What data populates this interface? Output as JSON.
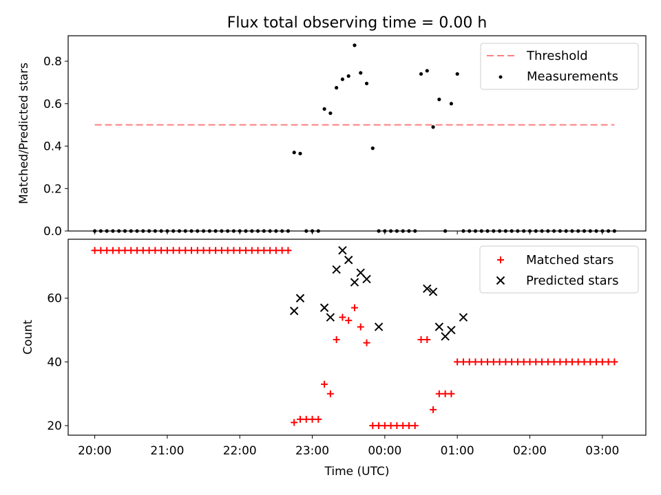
{
  "chart_data": [
    {
      "type": "scatter",
      "title": "Flux total observing time = 0.00 h",
      "xlabel": "",
      "ylabel": "Matched/Predicted stars",
      "xlim": [
        "19:38",
        "03:36"
      ],
      "ylim": [
        0,
        0.92
      ],
      "yticks": [
        0.0,
        0.2,
        0.4,
        0.6,
        0.8
      ],
      "yticklabels": [
        "0.0",
        "0.2",
        "0.4",
        "0.6",
        "0.8"
      ],
      "grid": false,
      "legend": "top-right",
      "legend_entries": [
        "Threshold",
        "Measurements"
      ],
      "colors": {
        "threshold": "#ff7f7f",
        "measurements": "#000000"
      },
      "threshold": {
        "name": "Threshold",
        "value": 0.5,
        "x_start": "20:00",
        "x_end": "03:10"
      },
      "measurements": {
        "name": "Measurements",
        "x": [
          "20:00",
          "20:05",
          "20:10",
          "20:15",
          "20:20",
          "20:25",
          "20:30",
          "20:35",
          "20:40",
          "20:45",
          "20:50",
          "20:55",
          "21:00",
          "21:05",
          "21:10",
          "21:15",
          "21:20",
          "21:25",
          "21:30",
          "21:35",
          "21:40",
          "21:45",
          "21:50",
          "21:55",
          "22:00",
          "22:05",
          "22:10",
          "22:15",
          "22:20",
          "22:25",
          "22:30",
          "22:35",
          "22:40",
          "22:45",
          "22:50",
          "22:55",
          "23:00",
          "23:05",
          "23:10",
          "23:15",
          "23:20",
          "23:25",
          "23:30",
          "23:35",
          "23:40",
          "23:45",
          "23:50",
          "23:55",
          "00:00",
          "00:05",
          "00:10",
          "00:15",
          "00:20",
          "00:25",
          "00:30",
          "00:35",
          "00:40",
          "00:45",
          "00:50",
          "00:55",
          "01:00",
          "01:05",
          "01:10",
          "01:15",
          "01:20",
          "01:25",
          "01:30",
          "01:35",
          "01:40",
          "01:45",
          "01:50",
          "01:55",
          "02:00",
          "02:05",
          "02:10",
          "02:15",
          "02:20",
          "02:25",
          "02:30",
          "02:35",
          "02:40",
          "02:45",
          "02:50",
          "02:55",
          "03:00",
          "03:05",
          "03:10"
        ],
        "y": [
          0,
          0,
          0,
          0,
          0,
          0,
          0,
          0,
          0,
          0,
          0,
          0,
          0,
          0,
          0,
          0,
          0,
          0,
          0,
          0,
          0,
          0,
          0,
          0,
          0,
          0,
          0,
          0,
          0,
          0,
          0,
          0,
          0,
          0.37,
          0.365,
          0,
          0,
          0,
          0.575,
          0.555,
          0.675,
          0.715,
          0.73,
          0.875,
          0.745,
          0.695,
          0.39,
          0,
          0,
          0,
          0,
          0,
          0,
          0,
          0.74,
          0.755,
          0.49,
          0.62,
          0,
          0.6,
          0.74,
          0,
          0,
          0,
          0,
          0,
          0,
          0,
          0,
          0,
          0,
          0,
          0,
          0,
          0,
          0,
          0,
          0,
          0,
          0,
          0,
          0,
          0,
          0,
          0,
          0,
          0
        ]
      }
    },
    {
      "type": "scatter",
      "title": "",
      "xlabel": "Time (UTC)",
      "ylabel": "Count",
      "xlim": [
        "19:38",
        "03:36"
      ],
      "ylim": [
        17,
        78.5
      ],
      "yticks": [
        20,
        40,
        60
      ],
      "yticklabels": [
        "20",
        "40",
        "60"
      ],
      "xticks": [
        "20:00",
        "21:00",
        "22:00",
        "23:00",
        "00:00",
        "01:00",
        "02:00",
        "03:00"
      ],
      "grid": false,
      "legend": "top-right",
      "legend_entries": [
        "Matched stars",
        "Predicted stars"
      ],
      "colors": {
        "matched": "#ff0000",
        "predicted": "#000000"
      },
      "matched": {
        "name": "Matched stars",
        "x": [
          "20:00",
          "20:05",
          "20:10",
          "20:15",
          "20:20",
          "20:25",
          "20:30",
          "20:35",
          "20:40",
          "20:45",
          "20:50",
          "20:55",
          "21:00",
          "21:05",
          "21:10",
          "21:15",
          "21:20",
          "21:25",
          "21:30",
          "21:35",
          "21:40",
          "21:45",
          "21:50",
          "21:55",
          "22:00",
          "22:05",
          "22:10",
          "22:15",
          "22:20",
          "22:25",
          "22:30",
          "22:35",
          "22:40",
          "22:45",
          "22:50",
          "22:55",
          "23:00",
          "23:05",
          "23:10",
          "23:15",
          "23:20",
          "23:25",
          "23:30",
          "23:35",
          "23:40",
          "23:45",
          "23:50",
          "23:55",
          "00:00",
          "00:05",
          "00:10",
          "00:15",
          "00:20",
          "00:25",
          "00:30",
          "00:35",
          "00:40",
          "00:45",
          "00:50",
          "00:55",
          "01:00",
          "01:05",
          "01:10",
          "01:15",
          "01:20",
          "01:25",
          "01:30",
          "01:35",
          "01:40",
          "01:45",
          "01:50",
          "01:55",
          "02:00",
          "02:05",
          "02:10",
          "02:15",
          "02:20",
          "02:25",
          "02:30",
          "02:35",
          "02:40",
          "02:45",
          "02:50",
          "02:55",
          "03:00",
          "03:05",
          "03:10"
        ],
        "y": [
          75,
          75,
          75,
          75,
          75,
          75,
          75,
          75,
          75,
          75,
          75,
          75,
          75,
          75,
          75,
          75,
          75,
          75,
          75,
          75,
          75,
          75,
          75,
          75,
          75,
          75,
          75,
          75,
          75,
          75,
          75,
          75,
          75,
          21,
          22,
          22,
          22,
          22,
          33,
          30,
          47,
          54,
          53,
          57,
          51,
          46,
          20,
          20,
          20,
          20,
          20,
          20,
          20,
          20,
          47,
          47,
          25,
          30,
          30,
          30,
          40,
          40,
          40,
          40,
          40,
          40,
          40,
          40,
          40,
          40,
          40,
          40,
          40,
          40,
          40,
          40,
          40,
          40,
          40,
          40,
          40,
          40,
          40,
          40,
          40,
          40,
          40
        ]
      },
      "predicted": {
        "name": "Predicted stars",
        "x": [
          "22:45",
          "22:50",
          "23:10",
          "23:15",
          "23:20",
          "23:25",
          "23:30",
          "23:35",
          "23:40",
          "23:45",
          "23:55",
          "00:35",
          "00:40",
          "00:45",
          "00:50",
          "00:55",
          "01:05"
        ],
        "y": [
          56,
          60,
          57,
          54,
          69,
          75,
          72,
          65,
          68,
          66,
          51,
          63,
          62,
          51,
          48,
          50,
          54
        ]
      }
    }
  ]
}
